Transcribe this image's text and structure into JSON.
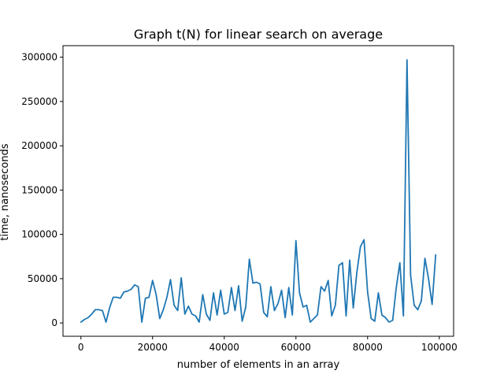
{
  "chart_data": {
    "type": "line",
    "title": "Graph t(N) for linear search on average",
    "xlabel": "number of elements in an array",
    "ylabel": "time, nanoseconds",
    "xlim": [
      -5000,
      104000
    ],
    "ylim": [
      -15000,
      313000
    ],
    "x_ticks": [
      0,
      20000,
      40000,
      60000,
      80000,
      100000
    ],
    "x_tick_labels": [
      "0",
      "20000",
      "40000",
      "60000",
      "80000",
      "100000"
    ],
    "y_ticks": [
      0,
      50000,
      100000,
      150000,
      200000,
      250000,
      300000
    ],
    "y_tick_labels": [
      "0",
      "50000",
      "100000",
      "150000",
      "200000",
      "250000",
      "300000"
    ],
    "grid": false,
    "legend": "none",
    "color": "#1f77b4",
    "series": [
      {
        "x": [
          0,
          1000,
          2000,
          3000,
          4000,
          5000,
          6000,
          7000,
          8000,
          9000,
          10000,
          11000,
          12000,
          13000,
          14000,
          15000,
          16000,
          17000,
          18000,
          19000,
          20000,
          21000,
          22000,
          23000,
          24000,
          25000,
          26000,
          27000,
          28000,
          29000,
          30000,
          31000,
          32000,
          33000,
          34000,
          35000,
          36000,
          37000,
          38000,
          39000,
          40000,
          41000,
          42000,
          43000,
          44000,
          45000,
          46000,
          47000,
          48000,
          49000,
          50000,
          51000,
          52000,
          53000,
          54000,
          55000,
          56000,
          57000,
          58000,
          59000,
          60000,
          61000,
          62000,
          63000,
          64000,
          65000,
          66000,
          67000,
          68000,
          69000,
          70000,
          71000,
          72000,
          73000,
          74000,
          75000,
          76000,
          77000,
          78000,
          79000,
          80000,
          81000,
          82000,
          83000,
          84000,
          85000,
          86000,
          87000,
          88000,
          89000,
          90000,
          91000,
          92000,
          93000,
          94000,
          95000,
          96000,
          97000,
          98000,
          99000
        ],
        "values": [
          1000,
          4000,
          6000,
          10000,
          15000,
          15000,
          14000,
          1000,
          17000,
          29000,
          29000,
          28000,
          35000,
          36000,
          38000,
          43000,
          41000,
          1000,
          28000,
          29000,
          48000,
          32000,
          5000,
          15000,
          29000,
          49000,
          20000,
          14000,
          51000,
          10000,
          19000,
          10000,
          8000,
          1000,
          32000,
          10000,
          3000,
          34000,
          9000,
          37000,
          10000,
          12000,
          40000,
          14000,
          42000,
          2000,
          18000,
          72000,
          45000,
          46000,
          44000,
          12000,
          7000,
          41000,
          14000,
          22000,
          37000,
          6000,
          40000,
          9000,
          93000,
          34000,
          18000,
          20000,
          1000,
          5000,
          9000,
          41000,
          36000,
          48000,
          8000,
          20000,
          65000,
          68000,
          8000,
          71000,
          17000,
          57000,
          86000,
          94000,
          35000,
          5000,
          2000,
          34000,
          9000,
          6000,
          1000,
          3000,
          40000,
          68000,
          8000,
          297000,
          54000,
          20000,
          15000,
          25000,
          73000,
          50000,
          21000,
          77000
        ]
      }
    ]
  }
}
